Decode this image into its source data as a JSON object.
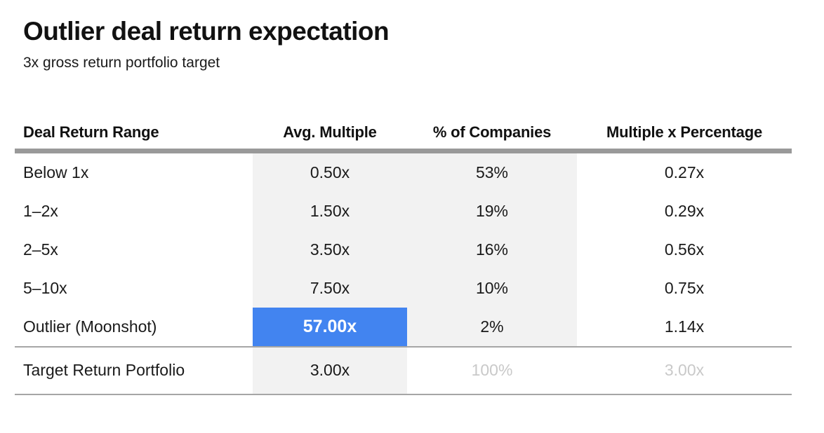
{
  "header": {
    "title": "Outlier deal return expectation",
    "subtitle": "3x gross return portfolio target"
  },
  "table": {
    "columns": [
      "Deal Return Range",
      "Avg. Multiple",
      "% of Companies",
      "Multiple x Percentage"
    ],
    "rows": [
      {
        "range": "Below 1x",
        "avg_multiple": "0.50x",
        "pct_companies": "53%",
        "multiple_x_percentage": "0.27x"
      },
      {
        "range": "1–2x",
        "avg_multiple": "1.50x",
        "pct_companies": "19%",
        "multiple_x_percentage": "0.29x"
      },
      {
        "range": "2–5x",
        "avg_multiple": "3.50x",
        "pct_companies": "16%",
        "multiple_x_percentage": "0.56x"
      },
      {
        "range": "5–10x",
        "avg_multiple": "7.50x",
        "pct_companies": "10%",
        "multiple_x_percentage": "0.75x"
      },
      {
        "range": "Outlier (Moonshot)",
        "avg_multiple": "57.00x",
        "pct_companies": "2%",
        "multiple_x_percentage": "1.14x",
        "highlight": "avg_multiple"
      },
      {
        "range": "Target Return Portfolio",
        "avg_multiple": "3.00x",
        "pct_companies": "100%",
        "multiple_x_percentage": "3.00x",
        "muted": "pct_companies,multiple_x_percentage"
      }
    ]
  },
  "colors": {
    "highlight_blue": "#4284f0",
    "column_background": "#f2f2f2",
    "header_rule": "#999999",
    "row_rule": "#a6a6a6",
    "muted_text": "#c9c9c9",
    "text": "#111111"
  },
  "chart_data": {
    "type": "table",
    "title": "Outlier deal return expectation",
    "subtitle": "3x gross return portfolio target",
    "columns": [
      "Deal Return Range",
      "Avg. Multiple",
      "% of Companies",
      "Multiple x Percentage"
    ],
    "rows": [
      [
        "Below 1x",
        0.5,
        53,
        0.27
      ],
      [
        "1–2x",
        1.5,
        19,
        0.29
      ],
      [
        "2–5x",
        3.5,
        16,
        0.56
      ],
      [
        "5–10x",
        7.5,
        10,
        0.75
      ],
      [
        "Outlier (Moonshot)",
        57.0,
        2,
        1.14
      ],
      [
        "Target Return Portfolio",
        3.0,
        100,
        3.0
      ]
    ],
    "units": {
      "avg_multiple": "x",
      "pct_companies": "%",
      "multiple_x_percentage": "x"
    },
    "annotations": [
      "Outlier (Moonshot) Avg. Multiple cell (57.00x) is highlighted blue with white bold text",
      "Target Return Portfolio row shows 100% and 3.00x in muted light-gray text",
      "Avg. Multiple and % of Companies columns have light gray background"
    ]
  }
}
